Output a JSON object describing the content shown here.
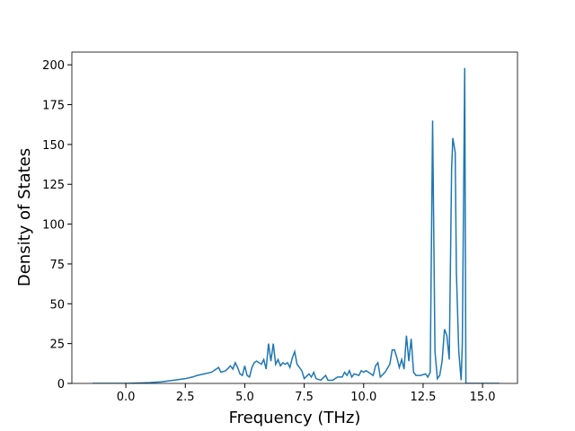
{
  "chart_data": {
    "type": "line",
    "xlabel": "Frequency (THz)",
    "ylabel": "Density of States",
    "series": [
      {
        "color": "#1f77b4",
        "x": [
          -1.4,
          -0.5,
          0,
          0.5,
          1.0,
          1.5,
          2.0,
          2.5,
          2.8,
          3.0,
          3.3,
          3.6,
          3.8,
          3.9,
          4.0,
          4.2,
          4.4,
          4.5,
          4.6,
          4.7,
          4.8,
          4.9,
          5.0,
          5.1,
          5.2,
          5.3,
          5.4,
          5.5,
          5.6,
          5.7,
          5.8,
          5.9,
          6.0,
          6.1,
          6.2,
          6.3,
          6.4,
          6.5,
          6.6,
          6.7,
          6.8,
          6.9,
          7.0,
          7.1,
          7.2,
          7.4,
          7.5,
          7.7,
          7.8,
          7.9,
          8.0,
          8.2,
          8.4,
          8.5,
          8.7,
          8.9,
          9.1,
          9.2,
          9.3,
          9.4,
          9.5,
          9.6,
          9.8,
          9.9,
          10.0,
          10.1,
          10.3,
          10.4,
          10.5,
          10.6,
          10.7,
          10.9,
          11.1,
          11.2,
          11.3,
          11.4,
          11.5,
          11.6,
          11.7,
          11.8,
          11.9,
          12.0,
          12.1,
          12.2,
          12.4,
          12.6,
          12.7,
          12.8,
          12.9,
          13.0,
          13.1,
          13.2,
          13.3,
          13.4,
          13.5,
          13.6,
          13.7,
          13.75,
          13.85,
          13.9,
          14.0,
          14.1,
          14.15,
          14.25,
          14.3,
          14.5,
          15.0,
          15.7
        ],
        "values": [
          0,
          0,
          0,
          0.2,
          0.5,
          1,
          2,
          3,
          4,
          5,
          6,
          7,
          9,
          10,
          7,
          8,
          11,
          9,
          13,
          10,
          6,
          5,
          11,
          5,
          4,
          10,
          13,
          14,
          13,
          12,
          15,
          9,
          25,
          14,
          25,
          12,
          15,
          11,
          13,
          12,
          13,
          10,
          16,
          20,
          12,
          8,
          3,
          6,
          4,
          7,
          3,
          2,
          5,
          2,
          2,
          4,
          4,
          7,
          5,
          8,
          4,
          6,
          5,
          8,
          7,
          8,
          6,
          5,
          11,
          13,
          4,
          7,
          12,
          21,
          21,
          16,
          10,
          15,
          9,
          30,
          14,
          28,
          7,
          5,
          5,
          6,
          4,
          7,
          165,
          20,
          3,
          5,
          14,
          34,
          30,
          15,
          135,
          154,
          145,
          70,
          20,
          2,
          25,
          198,
          0,
          0,
          0,
          0
        ]
      }
    ],
    "xlim": [
      -2.27,
      16.47
    ],
    "ylim": [
      0,
      208
    ],
    "xticks": [
      {
        "value": 0,
        "label": "0.0"
      },
      2.5,
      {
        "value": 5,
        "label": "5.0"
      },
      7.5,
      {
        "value": 10,
        "label": "10.0"
      },
      12.5,
      {
        "value": 15,
        "label": "15.0"
      }
    ],
    "yticks": [
      0,
      25,
      50,
      75,
      100,
      125,
      150,
      175,
      200
    ]
  }
}
